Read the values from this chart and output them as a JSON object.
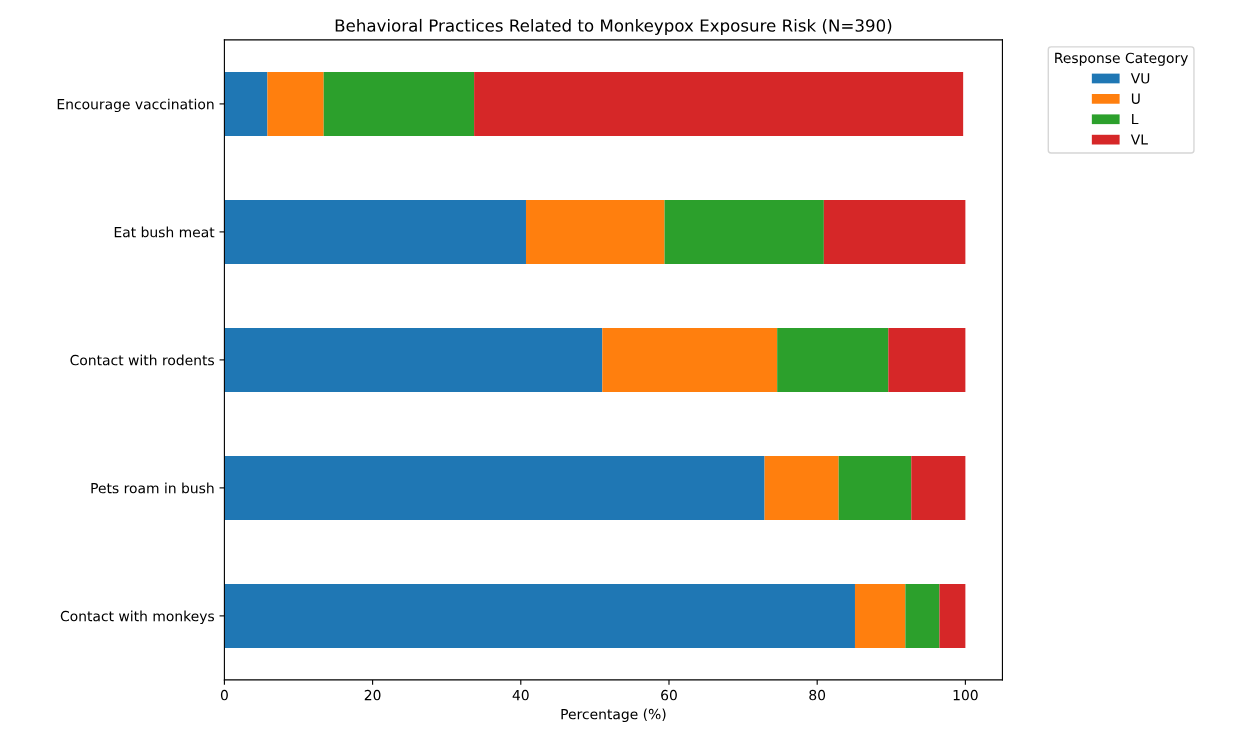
{
  "chart_data": {
    "type": "bar",
    "orientation": "horizontal",
    "stacked": true,
    "title": "Behavioral Practices Related to Monkeypox Exposure Risk (N=390)",
    "xlabel": "Percentage (%)",
    "legend_title": "Response Category",
    "legend": "top right",
    "grid": false,
    "categories": [
      "Encourage vaccination",
      "Eat bush meat",
      "Contact with rodents",
      "Pets roam in bush",
      "Contact with monkeys"
    ],
    "xlim": [
      0,
      105
    ],
    "xticks": [
      0,
      20,
      40,
      60,
      80,
      100
    ],
    "series": [
      {
        "name": "VU",
        "color": "#1f77b4",
        "values": [
          5.8,
          40.7,
          51.0,
          72.9,
          85.1
        ]
      },
      {
        "name": "U",
        "color": "#ff7f0e",
        "values": [
          7.6,
          18.7,
          23.6,
          10.0,
          6.8
        ]
      },
      {
        "name": "L",
        "color": "#2ca02c",
        "values": [
          20.3,
          21.5,
          15.0,
          9.8,
          4.6
        ]
      },
      {
        "name": "VL",
        "color": "#d62728",
        "values": [
          66.0,
          19.1,
          10.4,
          7.3,
          3.5
        ]
      }
    ]
  }
}
